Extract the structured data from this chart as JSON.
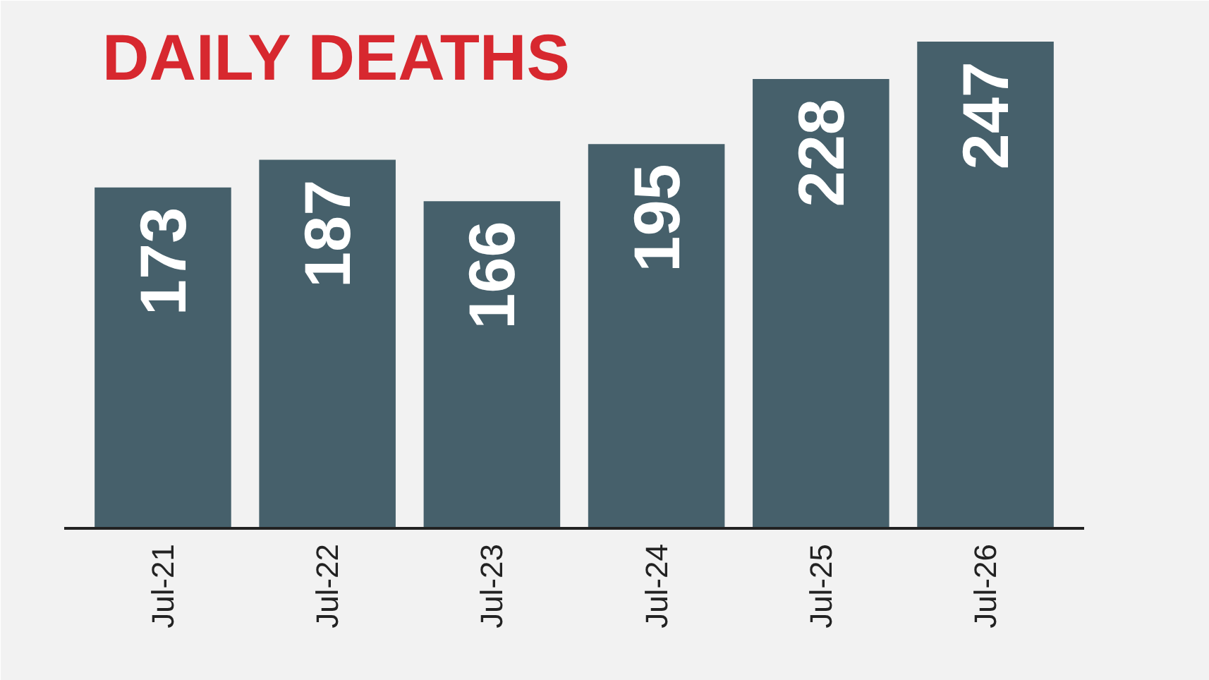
{
  "chart_data": {
    "type": "bar",
    "title": "DAILY DEATHS",
    "categories": [
      "Jul-21",
      "Jul-22",
      "Jul-23",
      "Jul-24",
      "Jul-25",
      "Jul-26"
    ],
    "values": [
      173,
      187,
      166,
      195,
      228,
      247
    ],
    "color": "#46606b",
    "data_labels": true,
    "grid": false,
    "tick_labels": "x"
  }
}
